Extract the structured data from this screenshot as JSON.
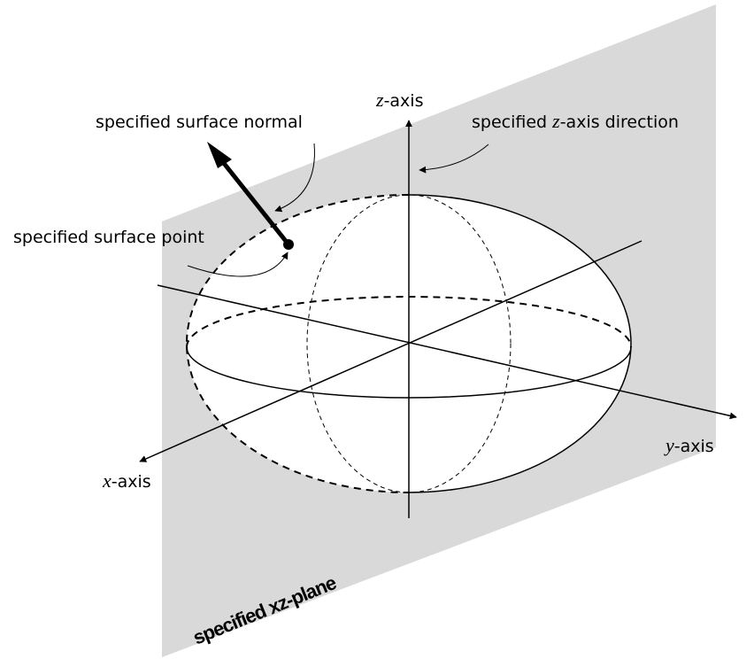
{
  "labels": {
    "z_axis": {
      "italic": "z",
      "rest": "-axis"
    },
    "y_axis": {
      "italic": "y",
      "rest": "-axis"
    },
    "x_axis": {
      "italic": "x",
      "rest": "-axis"
    },
    "surface_normal": "specified surface normal",
    "z_direction": {
      "before": "specified ",
      "italic": "z",
      "after": "-axis direction"
    },
    "surface_point": "specified surface point",
    "plane": "specified xz-plane"
  }
}
